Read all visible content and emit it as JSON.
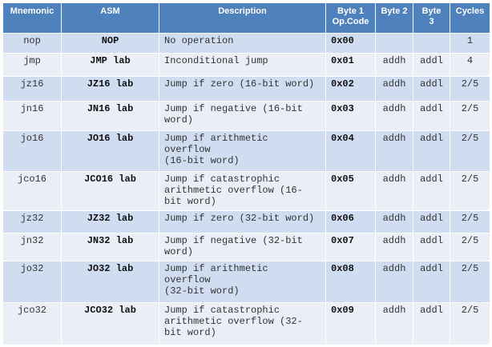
{
  "table": {
    "header": [
      "Mnemonic",
      "ASM",
      "Description",
      "Byte 1\nOp.Code",
      "Byte 2",
      "Byte 3",
      "Cycles"
    ],
    "rows": [
      [
        "nop",
        "NOP",
        "No operation",
        "0x00",
        null,
        null,
        "1"
      ],
      [
        "jmp",
        "JMP lab",
        "Inconditional jump",
        "0x01",
        "addh",
        "addl",
        "4"
      ],
      [
        "jz16",
        "JZ16 lab",
        "Jump if zero (16-bit word)",
        "0x02",
        "addh",
        "addl",
        "2/5"
      ],
      [
        "jn16",
        "JN16 lab",
        "Jump if negative (16-bit\nword)",
        "0x03",
        "addh",
        "addl",
        "2/5"
      ],
      [
        "jo16",
        "JO16 lab",
        "Jump if arithmetic\noverflow\n(16-bit word)",
        "0x04",
        "addh",
        "addl",
        "2/5"
      ],
      [
        "jco16",
        "JCO16 lab",
        "Jump if catastrophic\narithmetic overflow (16-\nbit word)",
        "0x05",
        "addh",
        "addl",
        "2/5"
      ],
      [
        "jz32",
        "JZ32 lab",
        "Jump if zero (32-bit word)",
        "0x06",
        "addh",
        "addl",
        "2/5"
      ],
      [
        "jn32",
        "JN32 lab",
        "Jump if negative (32-bit\nword)",
        "0x07",
        "addh",
        "addl",
        "2/5"
      ],
      [
        "jo32",
        "JO32 lab",
        "Jump if arithmetic\noverflow\n(32-bit word)",
        "0x08",
        "addh",
        "addl",
        "2/5"
      ],
      [
        "jco32",
        "JCO32 lab",
        "Jump if catastrophic\narithmetic overflow (32-\nbit word)",
        "0x09",
        "addh",
        "addl",
        "2/5"
      ]
    ]
  }
}
